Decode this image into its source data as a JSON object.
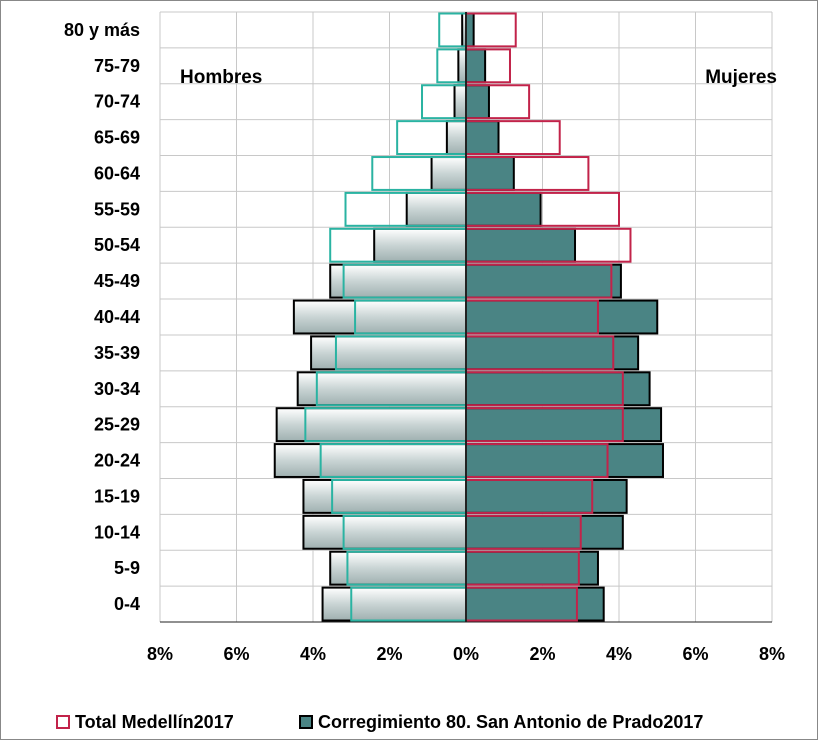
{
  "chart_data": {
    "type": "bar",
    "subtype": "population-pyramid",
    "categories": [
      "0-4",
      "5-9",
      "10-14",
      "15-19",
      "20-24",
      "25-29",
      "30-34",
      "35-39",
      "40-44",
      "45-49",
      "50-54",
      "55-59",
      "60-64",
      "65-69",
      "70-74",
      "75-79",
      "80 y más"
    ],
    "left_label": "Hombres",
    "right_label": "Mujeres",
    "x_ticks": [
      "8%",
      "6%",
      "4%",
      "2%",
      "0%",
      "2%",
      "4%",
      "6%",
      "8%"
    ],
    "xlim": [
      -8,
      8
    ],
    "grid": true,
    "legend_position": "bottom",
    "series": [
      {
        "name": "Total Medellín2017",
        "style": "outline",
        "color_male": "#2ab3a2",
        "color_female": "#c2234a",
        "male": [
          3.0,
          3.1,
          3.2,
          3.5,
          3.8,
          4.2,
          3.9,
          3.4,
          2.9,
          3.2,
          3.55,
          3.15,
          2.45,
          1.8,
          1.15,
          0.75,
          0.7
        ],
        "female": [
          2.9,
          2.95,
          3.0,
          3.3,
          3.7,
          4.1,
          4.1,
          3.85,
          3.45,
          3.8,
          4.3,
          4.0,
          3.2,
          2.45,
          1.65,
          1.15,
          1.3
        ]
      },
      {
        "name": "Corregimiento 80. San Antonio de Prado2017",
        "style": "filled",
        "color_male": "#c9d6d6",
        "color_female": "#4a8484",
        "male": [
          3.75,
          3.55,
          4.25,
          4.25,
          5.0,
          4.95,
          4.4,
          4.05,
          4.5,
          3.55,
          2.4,
          1.55,
          0.9,
          0.5,
          0.3,
          0.2,
          0.1
        ],
        "female": [
          3.6,
          3.45,
          4.1,
          4.2,
          5.15,
          5.1,
          4.8,
          4.5,
          5.0,
          4.05,
          2.85,
          1.95,
          1.25,
          0.85,
          0.6,
          0.5,
          0.2
        ]
      }
    ]
  },
  "colors": {
    "grid": "#c8c8c8",
    "bar_stroke": "#000000"
  }
}
